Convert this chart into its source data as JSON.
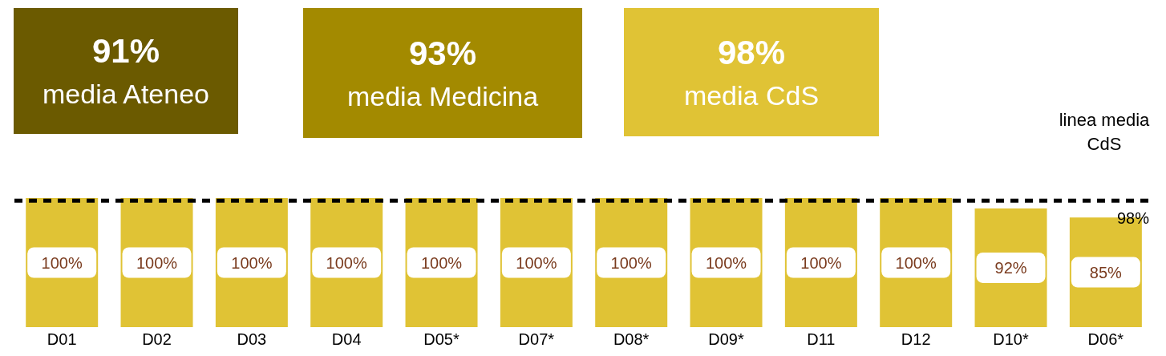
{
  "chart_data": [
    {
      "type": "other",
      "title": "91%",
      "subtitle": "media Ateneo",
      "color": "#6b5a00"
    },
    {
      "type": "other",
      "title": "93%",
      "subtitle": "media Medicina",
      "color": "#a38a00"
    },
    {
      "type": "other",
      "title": "98%",
      "subtitle": "media CdS",
      "color": "#e0c335"
    },
    {
      "type": "bar",
      "categories": [
        "D01",
        "D02",
        "D03",
        "D04",
        "D05*",
        "D07*",
        "D08*",
        "D09*",
        "D11",
        "D12",
        "D10*",
        "D06*"
      ],
      "values": [
        100,
        100,
        100,
        100,
        100,
        100,
        100,
        100,
        100,
        100,
        92,
        85
      ],
      "value_labels": [
        "100%",
        "100%",
        "100%",
        "100%",
        "100%",
        "100%",
        "100%",
        "100%",
        "100%",
        "100%",
        "92%",
        "85%"
      ],
      "color": "#e0c335",
      "ref_lines": [
        {
          "axis": "y",
          "value": 98,
          "label": "98%",
          "color": "#000000",
          "line_style": "dashed"
        }
      ],
      "annotations": [
        "linea media CdS"
      ]
    }
  ]
}
